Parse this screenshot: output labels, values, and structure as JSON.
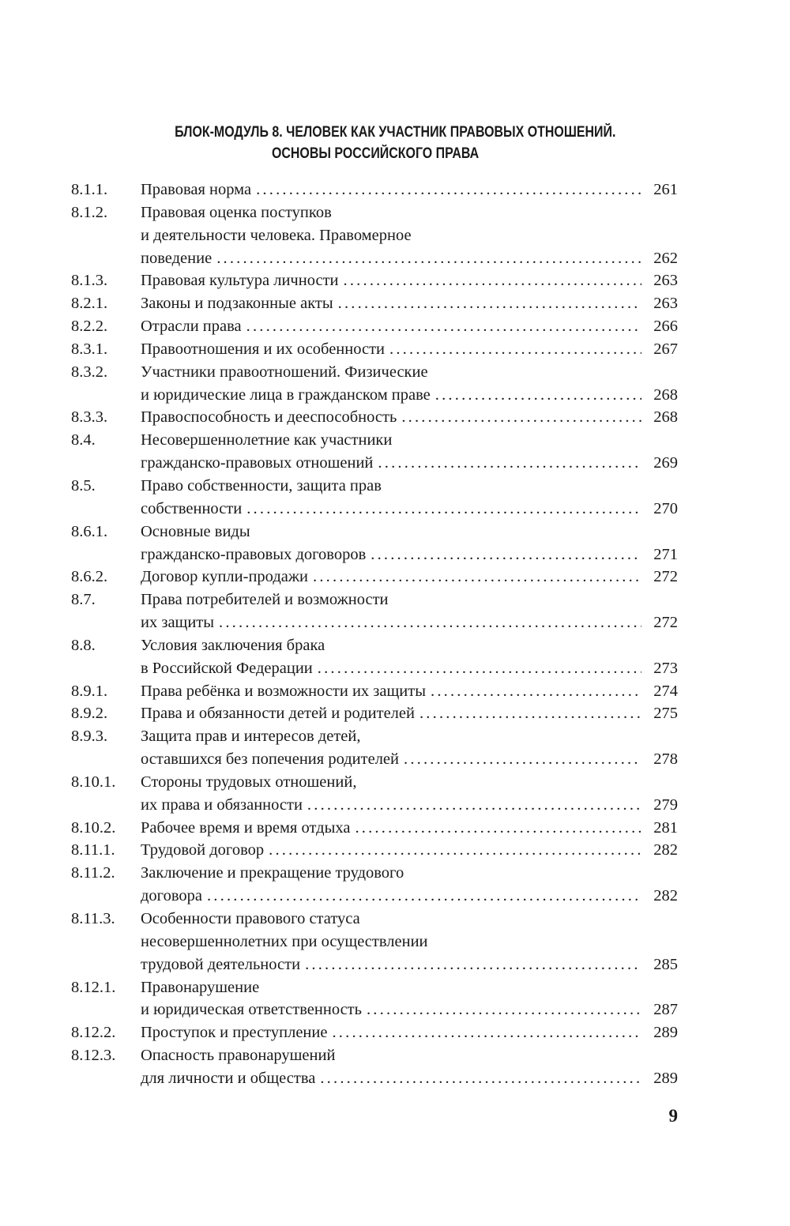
{
  "heading": {
    "line1": "БЛОК-МОДУЛЬ 8. ЧЕЛОВЕК КАК УЧАСТНИК ПРАВОВЫХ ОТНОШЕНИЙ.",
    "line2": "ОСНОВЫ РОССИЙСКОГО ПРАВА"
  },
  "entries": [
    {
      "num": "8.1.1.",
      "lines": [
        "Правовая норма"
      ],
      "page": "261"
    },
    {
      "num": "8.1.2.",
      "lines": [
        "Правовая оценка поступков",
        "и деятельности человека. Правомерное",
        "поведение"
      ],
      "page": "262"
    },
    {
      "num": "8.1.3.",
      "lines": [
        "Правовая культура личности"
      ],
      "page": "263"
    },
    {
      "num": "8.2.1.",
      "lines": [
        "Законы и подзаконные акты"
      ],
      "page": "263"
    },
    {
      "num": "8.2.2.",
      "lines": [
        "Отрасли права"
      ],
      "page": "266"
    },
    {
      "num": "8.3.1.",
      "lines": [
        "Правоотношения и их особенности"
      ],
      "page": "267"
    },
    {
      "num": "8.3.2.",
      "lines": [
        "Участники правоотношений. Физические",
        "и юридические лица в гражданском праве"
      ],
      "page": "268"
    },
    {
      "num": "8.3.3.",
      "lines": [
        "Правоспособность и дееспособность"
      ],
      "page": "268"
    },
    {
      "num": "8.4.",
      "lines": [
        "Несовершеннолетние как участники",
        "гражданско-правовых отношений"
      ],
      "page": "269"
    },
    {
      "num": "8.5.",
      "lines": [
        "Право собственности, защита прав",
        "собственности"
      ],
      "page": "270"
    },
    {
      "num": "8.6.1.",
      "lines": [
        "Основные виды",
        "гражданско-правовых договоров"
      ],
      "page": "271"
    },
    {
      "num": "8.6.2.",
      "lines": [
        "Договор купли-продажи"
      ],
      "page": "272"
    },
    {
      "num": "8.7.",
      "lines": [
        "Права потребителей и возможности",
        "их защиты"
      ],
      "page": "272"
    },
    {
      "num": "8.8.",
      "lines": [
        "Условия заключения брака",
        "в Российской Федерации"
      ],
      "page": "273"
    },
    {
      "num": "8.9.1.",
      "lines": [
        "Права ребёнка и возможности их защиты"
      ],
      "page": "274"
    },
    {
      "num": "8.9.2.",
      "lines": [
        "Права и обязанности детей и родителей"
      ],
      "page": "275"
    },
    {
      "num": "8.9.3.",
      "lines": [
        "Защита прав и интересов детей,",
        "оставшихся без попечения родителей"
      ],
      "page": "278"
    },
    {
      "num": "8.10.1.",
      "lines": [
        "Стороны трудовых отношений,",
        "их права и обязанности"
      ],
      "page": "279"
    },
    {
      "num": "8.10.2.",
      "lines": [
        "Рабочее время и время отдыха"
      ],
      "page": "281"
    },
    {
      "num": "8.11.1.",
      "lines": [
        "Трудовой договор"
      ],
      "page": "282"
    },
    {
      "num": "8.11.2.",
      "lines": [
        "Заключение и прекращение трудового",
        "договора"
      ],
      "page": "282"
    },
    {
      "num": "8.11.3.",
      "lines": [
        "Особенности правового статуса",
        "несовершеннолетних при осуществлении",
        "трудовой деятельности"
      ],
      "page": "285"
    },
    {
      "num": "8.12.1.",
      "lines": [
        "Правонарушение",
        "и юридическая ответственность"
      ],
      "page": "287"
    },
    {
      "num": "8.12.2.",
      "lines": [
        "Проступок и преступление"
      ],
      "page": "289"
    },
    {
      "num": "8.12.3.",
      "lines": [
        "Опасность правонарушений",
        "для личности и общества"
      ],
      "page": "289"
    }
  ],
  "page_number": "9"
}
